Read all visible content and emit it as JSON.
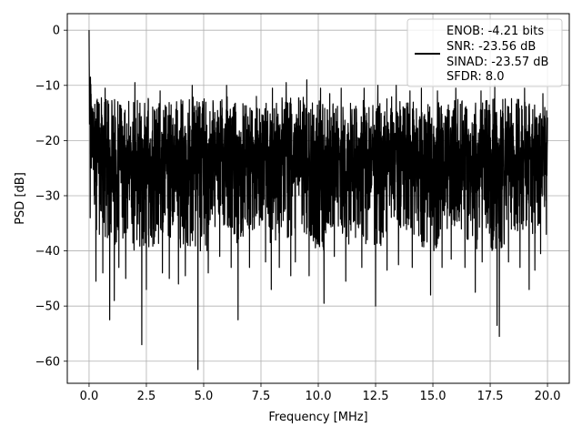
{
  "chart_data": {
    "type": "line",
    "xlabel": "Frequency [MHz]",
    "ylabel": "PSD [dB]",
    "xlim": [
      -0.95,
      20.95
    ],
    "ylim": [
      -64.0,
      3.0
    ],
    "xticks": [
      0.0,
      2.5,
      5.0,
      7.5,
      10.0,
      12.5,
      15.0,
      17.5,
      20.0
    ],
    "xtick_labels": [
      "0.0",
      "2.5",
      "5.0",
      "7.5",
      "10.0",
      "12.5",
      "15.0",
      "17.5",
      "20.0"
    ],
    "yticks": [
      0,
      -10,
      -20,
      -30,
      -40,
      -50,
      -60
    ],
    "ytick_labels": [
      "0",
      "−10",
      "−20",
      "−30",
      "−40",
      "−50",
      "−60"
    ],
    "grid": true,
    "legend_placement": "upper right",
    "series_color": "#000000",
    "legend_lines": [
      "ENOB: -4.21 bits",
      "SNR: -23.56 dB",
      "SINAD: -23.57 dB",
      "SFDR: 8.0"
    ],
    "series": [
      {
        "points": [
          [
            0.0,
            0.0
          ],
          [
            0.02,
            -17.0
          ],
          [
            0.05,
            -34.0
          ],
          [
            0.08,
            -12.0
          ],
          [
            0.1,
            -25.0
          ],
          [
            0.3,
            -45.5
          ],
          [
            0.45,
            -37.0
          ],
          [
            0.6,
            -44.0
          ],
          [
            0.9,
            -52.5
          ],
          [
            1.1,
            -49.0
          ],
          [
            1.3,
            -43.0
          ],
          [
            1.6,
            -45.0
          ],
          [
            2.0,
            -46.0
          ],
          [
            2.3,
            -57.0
          ],
          [
            2.5,
            -47.0
          ],
          [
            3.2,
            -44.0
          ],
          [
            3.5,
            -45.0
          ],
          [
            3.9,
            -46.0
          ],
          [
            4.2,
            -44.5
          ],
          [
            4.75,
            -61.5
          ],
          [
            5.2,
            -44.0
          ],
          [
            5.7,
            -41.0
          ],
          [
            6.2,
            -43.0
          ],
          [
            6.5,
            -52.5
          ],
          [
            7.0,
            -43.0
          ],
          [
            7.7,
            -42.0
          ],
          [
            7.95,
            -47.0
          ],
          [
            8.3,
            -43.0
          ],
          [
            8.8,
            -44.5
          ],
          [
            9.0,
            -42.0
          ],
          [
            9.6,
            -44.5
          ],
          [
            10.25,
            -49.5
          ],
          [
            10.7,
            -41.0
          ],
          [
            11.2,
            -45.5
          ],
          [
            11.9,
            -43.0
          ],
          [
            12.5,
            -50.0
          ],
          [
            13.0,
            -43.5
          ],
          [
            13.5,
            -42.5
          ],
          [
            14.1,
            -43.0
          ],
          [
            14.9,
            -48.0
          ],
          [
            15.4,
            -43.0
          ],
          [
            15.8,
            -41.5
          ],
          [
            16.4,
            -43.0
          ],
          [
            16.85,
            -47.5
          ],
          [
            17.15,
            -42.0
          ],
          [
            17.8,
            -53.5
          ],
          [
            17.9,
            -55.5
          ],
          [
            18.3,
            -42.0
          ],
          [
            18.8,
            -43.0
          ],
          [
            19.2,
            -47.0
          ],
          [
            19.45,
            -43.5
          ],
          [
            19.7,
            -40.5
          ],
          [
            19.95,
            -37.0
          ]
        ],
        "peaks": [
          [
            0.06,
            -8.5
          ],
          [
            0.7,
            -10.5
          ],
          [
            2.0,
            -9.5
          ],
          [
            3.1,
            -11.0
          ],
          [
            4.5,
            -10.0
          ],
          [
            6.0,
            -10.0
          ],
          [
            7.3,
            -12.0
          ],
          [
            8.0,
            -10.5
          ],
          [
            8.6,
            -9.5
          ],
          [
            9.5,
            -9.0
          ],
          [
            10.1,
            -10.5
          ],
          [
            10.5,
            -11.5
          ],
          [
            11.0,
            -10.5
          ],
          [
            12.0,
            -10.5
          ],
          [
            12.6,
            -10.0
          ],
          [
            13.4,
            -10.0
          ],
          [
            14.0,
            -11.0
          ],
          [
            14.5,
            -10.5
          ],
          [
            15.2,
            -11.0
          ],
          [
            16.0,
            -10.5
          ],
          [
            17.1,
            -11.0
          ],
          [
            17.7,
            -10.0
          ],
          [
            19.0,
            -10.5
          ],
          [
            19.8,
            -11.5
          ]
        ]
      }
    ]
  }
}
